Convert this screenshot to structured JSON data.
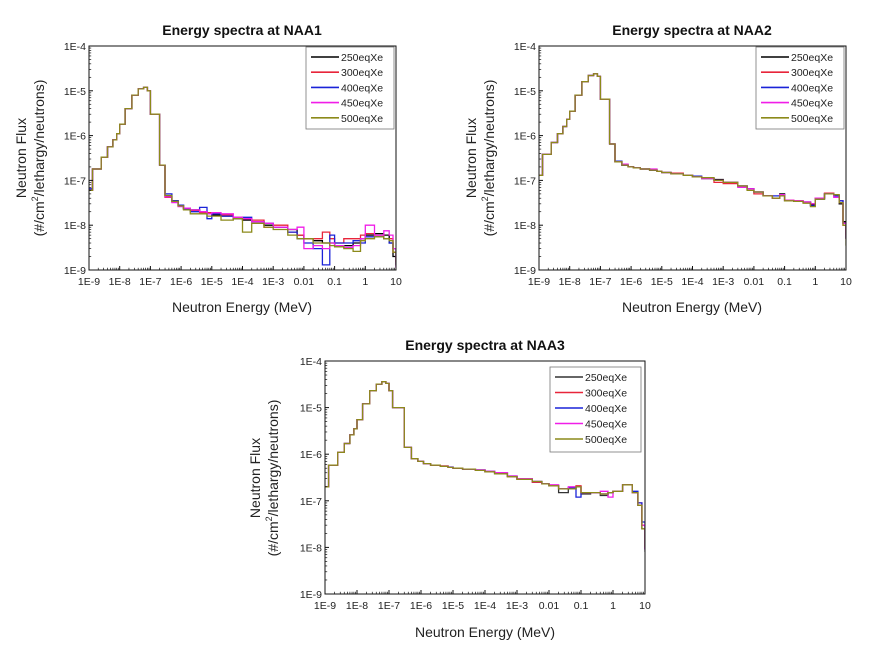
{
  "chart_data": [
    {
      "type": "line",
      "title": "Energy spectra at NAA1",
      "xlabel": "Neutron Energy (MeV)",
      "ylabel_line1": "Neutron Flux",
      "ylabel_line2_pre": "(#/cm",
      "ylabel_line2_sup": "2",
      "ylabel_line2_post": "/lethargy/neutrons)",
      "xscale": "log",
      "yscale": "log",
      "xlim": [
        1e-09,
        10
      ],
      "ylim": [
        1e-09,
        0.0001
      ],
      "xticks": [
        "1E-9",
        "1E-8",
        "1E-7",
        "1E-6",
        "1E-5",
        "1E-4",
        "1E-3",
        "0.01",
        "0.1",
        "1",
        "10"
      ],
      "yticks": [
        "1E-9",
        "1E-8",
        "1E-7",
        "1E-6",
        "1E-5",
        "1E-4"
      ],
      "legend_position": "top-right",
      "step": true,
      "x": [
        1e-09,
        1.3e-09,
        2.5e-09,
        4e-09,
        6e-09,
        8e-09,
        1e-08,
        1.5e-08,
        2.5e-08,
        4e-08,
        6e-08,
        8e-08,
        1e-07,
        2e-07,
        3e-07,
        5e-07,
        8e-07,
        1.2e-06,
        2e-06,
        4e-06,
        7e-06,
        1e-05,
        2e-05,
        5e-05,
        0.0001,
        0.0002,
        0.0005,
        0.001,
        0.003,
        0.006,
        0.01,
        0.02,
        0.04,
        0.07,
        0.1,
        0.2,
        0.4,
        0.7,
        1,
        2,
        4,
        6,
        8,
        10
      ],
      "series": [
        {
          "name": "250eqXe",
          "color": "#000000",
          "values": [
            6e-08,
            1.8e-07,
            3.3e-07,
            5.6e-07,
            8e-07,
            1.1e-06,
            1.8e-06,
            4e-06,
            8e-06,
            1.1e-05,
            1.2e-05,
            1e-05,
            3e-06,
            2.2e-07,
            4.5e-08,
            3.5e-08,
            2.8e-08,
            2.4e-08,
            2.2e-08,
            2e-08,
            1.8e-08,
            1.7e-08,
            1.6e-08,
            1.4e-08,
            1.3e-08,
            1.2e-08,
            1e-08,
            9e-09,
            8e-09,
            6e-09,
            5e-09,
            4.5e-09,
            4e-09,
            4e-09,
            3.5e-09,
            3.5e-09,
            4e-09,
            5e-09,
            6e-09,
            6.5e-09,
            6e-09,
            4e-09,
            2e-09,
            1.2e-09
          ]
        },
        {
          "name": "300eqXe",
          "color": "#e8253a",
          "values": [
            6e-08,
            1.8e-07,
            3.3e-07,
            5.6e-07,
            8e-07,
            1.1e-06,
            1.8e-06,
            4e-06,
            8e-06,
            1.1e-05,
            1.2e-05,
            1e-05,
            3e-06,
            2.2e-07,
            4.2e-08,
            3.3e-08,
            2.7e-08,
            2.3e-08,
            2.1e-08,
            1.9e-08,
            1.9e-08,
            1.8e-08,
            1.7e-08,
            1.5e-08,
            1.4e-08,
            1.3e-08,
            9e-09,
            1e-08,
            7e-09,
            6e-09,
            5e-09,
            5e-09,
            7e-09,
            5e-09,
            4e-09,
            5e-09,
            5e-09,
            6e-09,
            6.5e-09,
            6e-09,
            5e-09,
            5e-09,
            2.5e-09,
            1.5e-09
          ]
        },
        {
          "name": "400eqXe",
          "color": "#1a23d8",
          "values": [
            6.5e-08,
            1.8e-07,
            3.3e-07,
            5.6e-07,
            8e-07,
            1.1e-06,
            1.8e-06,
            4e-06,
            8e-06,
            1.1e-05,
            1.2e-05,
            1e-05,
            3e-06,
            2.2e-07,
            5e-08,
            3.5e-08,
            2.8e-08,
            2.3e-08,
            2e-08,
            2.5e-08,
            1.4e-08,
            1.8e-08,
            1.6e-08,
            1.4e-08,
            1.5e-08,
            1.2e-08,
            1.1e-08,
            9e-09,
            7e-09,
            5e-09,
            4e-09,
            3e-09,
            1.3e-09,
            6e-09,
            4e-09,
            4e-09,
            4.5e-09,
            4e-09,
            5.5e-09,
            5.5e-09,
            5e-09,
            4e-09,
            3e-09,
            1.3e-09
          ]
        },
        {
          "name": "450eqXe",
          "color": "#f01ee8",
          "values": [
            6e-08,
            1.8e-07,
            3.3e-07,
            5.6e-07,
            8e-07,
            1.1e-06,
            1.8e-06,
            4e-06,
            8e-06,
            1.1e-05,
            1.2e-05,
            1e-05,
            3e-06,
            2.2e-07,
            4.3e-08,
            3.2e-08,
            2.6e-08,
            2.4e-08,
            2.2e-08,
            2e-08,
            1.8e-08,
            1.9e-08,
            1.8e-08,
            1.5e-08,
            1.4e-08,
            1.2e-08,
            1.1e-08,
            9e-09,
            8e-09,
            9e-09,
            3e-09,
            3.5e-09,
            3e-09,
            4e-09,
            3.5e-09,
            3.2e-09,
            3.5e-09,
            5e-09,
            1e-08,
            6e-09,
            7.5e-09,
            6e-09,
            3e-09,
            1.1e-09
          ]
        },
        {
          "name": "500eqXe",
          "color": "#8c8a1a",
          "values": [
            6e-08,
            1.8e-07,
            3.3e-07,
            5.6e-07,
            8e-07,
            1.1e-06,
            1.8e-06,
            4e-06,
            8e-06,
            1.1e-05,
            1.2e-05,
            1e-05,
            3e-06,
            2.2e-07,
            4.6e-08,
            3.4e-08,
            2.7e-08,
            2.2e-08,
            1.8e-08,
            1.8e-08,
            1.6e-08,
            1.6e-08,
            1.3e-08,
            1.4e-08,
            7e-09,
            1.1e-08,
            9e-09,
            8e-09,
            6e-09,
            5e-09,
            5e-09,
            4e-09,
            4e-09,
            3.5e-09,
            3.3e-09,
            3e-09,
            2.6e-09,
            4.5e-09,
            5e-09,
            5.5e-09,
            5e-09,
            4.5e-09,
            2.5e-09,
            1.3e-09
          ]
        }
      ]
    },
    {
      "type": "line",
      "title": "Energy spectra at NAA2",
      "xlabel": "Neutron Energy (MeV)",
      "ylabel_line1": "Neutron Flux",
      "ylabel_line2_pre": "(#/cm",
      "ylabel_line2_sup": "2",
      "ylabel_line2_post": "/lethargy/neutrons)",
      "xscale": "log",
      "yscale": "log",
      "xlim": [
        1e-09,
        10
      ],
      "ylim": [
        1e-09,
        0.0001
      ],
      "xticks": [
        "1E-9",
        "1E-8",
        "1E-7",
        "1E-6",
        "1E-5",
        "1E-4",
        "1E-3",
        "0.01",
        "0.1",
        "1",
        "10"
      ],
      "yticks": [
        "1E-9",
        "1E-8",
        "1E-7",
        "1E-6",
        "1E-5",
        "1E-4"
      ],
      "legend_position": "top-right",
      "step": true,
      "x": [
        1e-09,
        1.3e-09,
        2.5e-09,
        4e-09,
        6e-09,
        8e-09,
        1e-08,
        1.5e-08,
        2.5e-08,
        4e-08,
        6e-08,
        8e-08,
        1e-07,
        2e-07,
        3e-07,
        5e-07,
        8e-07,
        1.2e-06,
        2e-06,
        4e-06,
        7e-06,
        1e-05,
        2e-05,
        5e-05,
        0.0001,
        0.0002,
        0.0005,
        0.001,
        0.003,
        0.006,
        0.01,
        0.02,
        0.04,
        0.07,
        0.1,
        0.2,
        0.4,
        0.7,
        1,
        2,
        4,
        6,
        8,
        10
      ],
      "series": [
        {
          "name": "250eqXe",
          "color": "#000000",
          "values": [
            1.3e-07,
            3.8e-07,
            7e-07,
            1.1e-06,
            1.6e-06,
            2.3e-06,
            3.5e-06,
            8e-06,
            1.6e-05,
            2.2e-05,
            2.4e-05,
            2.1e-05,
            6.5e-06,
            6.5e-07,
            2.6e-07,
            2.2e-07,
            2e-07,
            1.9e-07,
            1.8e-07,
            1.7e-07,
            1.6e-07,
            1.5e-07,
            1.4e-07,
            1.3e-07,
            1.2e-07,
            1.1e-07,
            1.05e-07,
            9e-08,
            7.5e-08,
            6.5e-08,
            5.5e-08,
            4.5e-08,
            4e-08,
            5e-08,
            3.5e-08,
            3.4e-08,
            3.2e-08,
            2.8e-08,
            4e-08,
            5e-08,
            4.5e-08,
            3e-08,
            1.2e-08,
            5e-09
          ]
        },
        {
          "name": "300eqXe",
          "color": "#e8253a",
          "values": [
            1.3e-07,
            3.8e-07,
            7e-07,
            1.1e-06,
            1.6e-06,
            2.3e-06,
            3.5e-06,
            8e-06,
            1.6e-05,
            2.2e-05,
            2.4e-05,
            2.1e-05,
            6.5e-06,
            6.5e-07,
            2.6e-07,
            2.2e-07,
            2e-07,
            1.9e-07,
            1.8e-07,
            1.7e-07,
            1.6e-07,
            1.5e-07,
            1.45e-07,
            1.3e-07,
            1.2e-07,
            1.1e-07,
            9e-08,
            8.5e-08,
            7.5e-08,
            6.5e-08,
            5e-08,
            4.5e-08,
            4e-08,
            4.5e-08,
            3.6e-08,
            3.5e-08,
            3.3e-08,
            3e-08,
            4e-08,
            5.2e-08,
            4.5e-08,
            3.5e-08,
            1e-08,
            6e-09
          ]
        },
        {
          "name": "400eqXe",
          "color": "#1a23d8",
          "values": [
            1.3e-07,
            3.8e-07,
            7e-07,
            1.1e-06,
            1.6e-06,
            2.3e-06,
            3.5e-06,
            8e-06,
            1.6e-05,
            2.2e-05,
            2.4e-05,
            2.1e-05,
            6.5e-06,
            6.5e-07,
            2.7e-07,
            2.2e-07,
            2e-07,
            1.9e-07,
            1.8e-07,
            1.7e-07,
            1.6e-07,
            1.5e-07,
            1.4e-07,
            1.3e-07,
            1.25e-07,
            1.1e-07,
            1e-07,
            9e-08,
            7.5e-08,
            6.5e-08,
            5.5e-08,
            4.5e-08,
            4.5e-08,
            4.5e-08,
            3.5e-08,
            3.4e-08,
            3.3e-08,
            2.7e-08,
            3.8e-08,
            5e-08,
            4.5e-08,
            3.5e-08,
            1.1e-08,
            5e-09
          ]
        },
        {
          "name": "450eqXe",
          "color": "#f01ee8",
          "values": [
            1.3e-07,
            3.8e-07,
            7e-07,
            1.1e-06,
            1.6e-06,
            2.3e-06,
            3.5e-06,
            8e-06,
            1.6e-05,
            2.2e-05,
            2.4e-05,
            2.1e-05,
            6.5e-06,
            6.5e-07,
            2.6e-07,
            2.3e-07,
            2e-07,
            1.9e-07,
            1.8e-07,
            1.8e-07,
            1.6e-07,
            1.5e-07,
            1.4e-07,
            1.3e-07,
            1.2e-07,
            1.1e-07,
            1e-07,
            9e-08,
            7e-08,
            6.5e-08,
            5.5e-08,
            4.5e-08,
            4e-08,
            4.8e-08,
            3.6e-08,
            3.5e-08,
            3.3e-08,
            3e-08,
            4e-08,
            5e-08,
            4.2e-08,
            3.2e-08,
            1.1e-08,
            5e-09
          ]
        },
        {
          "name": "500eqXe",
          "color": "#8c8a1a",
          "values": [
            1.3e-07,
            3.8e-07,
            7e-07,
            1.1e-06,
            1.6e-06,
            2.3e-06,
            3.5e-06,
            8e-06,
            1.6e-05,
            2.2e-05,
            2.4e-05,
            2.1e-05,
            6.5e-06,
            6.5e-07,
            2.6e-07,
            2.2e-07,
            2e-07,
            1.9e-07,
            1.8e-07,
            1.7e-07,
            1.6e-07,
            1.5e-07,
            1.4e-07,
            1.3e-07,
            1.2e-07,
            1.15e-07,
            1e-07,
            9e-08,
            7.5e-08,
            6e-08,
            5.5e-08,
            4.5e-08,
            4e-08,
            4.5e-08,
            3.5e-08,
            3.4e-08,
            3.1e-08,
            2.6e-08,
            3.8e-08,
            5e-08,
            4.8e-08,
            3.2e-08,
            1e-08,
            3.5e-09
          ]
        }
      ]
    },
    {
      "type": "line",
      "title": "Energy spectra at NAA3",
      "xlabel": "Neutron Energy (MeV)",
      "ylabel_line1": "Neutron Flux",
      "ylabel_line2_pre": "(#/cm",
      "ylabel_line2_sup": "2",
      "ylabel_line2_post": "/lethargy/neutrons)",
      "xscale": "log",
      "yscale": "log",
      "xlim": [
        1e-09,
        10
      ],
      "ylim": [
        1e-09,
        0.0001
      ],
      "xticks": [
        "1E-9",
        "1E-8",
        "1E-7",
        "1E-6",
        "1E-5",
        "1E-4",
        "1E-3",
        "0.01",
        "0.1",
        "1",
        "10"
      ],
      "yticks": [
        "1E-9",
        "1E-8",
        "1E-7",
        "1E-6",
        "1E-5",
        "1E-4"
      ],
      "legend_position": "top-right",
      "step": true,
      "x": [
        1e-09,
        1.3e-09,
        2.5e-09,
        4e-09,
        6e-09,
        8e-09,
        1e-08,
        1.5e-08,
        2.5e-08,
        4e-08,
        6e-08,
        8e-08,
        1e-07,
        1.3e-07,
        3e-07,
        5e-07,
        8e-07,
        1.2e-06,
        2e-06,
        4e-06,
        7e-06,
        1e-05,
        2e-05,
        5e-05,
        0.0001,
        0.0002,
        0.0005,
        0.001,
        0.003,
        0.006,
        0.01,
        0.02,
        0.04,
        0.07,
        0.1,
        0.2,
        0.4,
        0.7,
        1,
        2,
        4,
        6,
        8,
        10
      ],
      "series": [
        {
          "name": "250eqXe",
          "color": "#333333",
          "values": [
            2e-07,
            5.8e-07,
            1.1e-06,
            1.7e-06,
            2.6e-06,
            3.5e-06,
            5.5e-06,
            1.2e-05,
            2.3e-05,
            3.2e-05,
            3.6e-05,
            3.3e-05,
            2.3e-05,
            1e-05,
            1.4e-06,
            8e-07,
            7e-07,
            6.3e-07,
            5.8e-07,
            5.5e-07,
            5.2e-07,
            5e-07,
            4.8e-07,
            4.5e-07,
            4.2e-07,
            3.8e-07,
            3.3e-07,
            2.9e-07,
            2.6e-07,
            2.3e-07,
            2.1e-07,
            1.5e-07,
            1.8e-07,
            2e-07,
            1.4e-07,
            1.5e-07,
            1.3e-07,
            1.5e-07,
            1.6e-07,
            2.2e-07,
            1.5e-07,
            8e-08,
            2.5e-08,
            8e-09
          ]
        },
        {
          "name": "300eqXe",
          "color": "#e8253a",
          "values": [
            2e-07,
            5.8e-07,
            1.1e-06,
            1.7e-06,
            2.6e-06,
            3.5e-06,
            5.5e-06,
            1.2e-05,
            2.3e-05,
            3.2e-05,
            3.6e-05,
            3.3e-05,
            2.3e-05,
            1e-05,
            1.4e-06,
            8e-07,
            7e-07,
            6.3e-07,
            5.8e-07,
            5.6e-07,
            5.2e-07,
            5e-07,
            4.8e-07,
            4.5e-07,
            4.2e-07,
            3.9e-07,
            3.3e-07,
            2.9e-07,
            2.5e-07,
            2.3e-07,
            2.1e-07,
            1.8e-07,
            1.9e-07,
            2.1e-07,
            1.5e-07,
            1.5e-07,
            1.4e-07,
            1.5e-07,
            1.6e-07,
            2.2e-07,
            1.5e-07,
            9e-08,
            3e-08,
            9e-09
          ]
        },
        {
          "name": "400eqXe",
          "color": "#1a23d8",
          "values": [
            2e-07,
            5.8e-07,
            1.1e-06,
            1.7e-06,
            2.6e-06,
            3.5e-06,
            5.5e-06,
            1.2e-05,
            2.3e-05,
            3.2e-05,
            3.6e-05,
            3.3e-05,
            2.3e-05,
            1e-05,
            1.4e-06,
            8e-07,
            7e-07,
            6.3e-07,
            5.8e-07,
            5.5e-07,
            5.3e-07,
            5e-07,
            4.8e-07,
            4.6e-07,
            4.3e-07,
            4e-07,
            3.4e-07,
            3e-07,
            2.6e-07,
            2.3e-07,
            2.1e-07,
            1.8e-07,
            1.9e-07,
            1.2e-07,
            1.5e-07,
            1.5e-07,
            1.4e-07,
            1.5e-07,
            1.6e-07,
            2.2e-07,
            1.6e-07,
            9e-08,
            3.5e-08,
            9e-09
          ]
        },
        {
          "name": "450eqXe",
          "color": "#f01ee8",
          "values": [
            2e-07,
            5.8e-07,
            1.1e-06,
            1.7e-06,
            2.6e-06,
            3.5e-06,
            5.5e-06,
            1.2e-05,
            2.3e-05,
            3.2e-05,
            3.6e-05,
            3.3e-05,
            2.3e-05,
            1e-05,
            1.4e-06,
            8e-07,
            7e-07,
            6.3e-07,
            5.8e-07,
            5.5e-07,
            5.2e-07,
            5e-07,
            4.8e-07,
            4.6e-07,
            4.3e-07,
            4e-07,
            3.4e-07,
            3e-07,
            2.6e-07,
            2.3e-07,
            2.2e-07,
            1.8e-07,
            2e-07,
            2e-07,
            1.5e-07,
            1.5e-07,
            1.6e-07,
            1.2e-07,
            1.6e-07,
            2.2e-07,
            1.5e-07,
            8e-08,
            3e-08,
            9e-09
          ]
        },
        {
          "name": "500eqXe",
          "color": "#8c8a1a",
          "values": [
            2e-07,
            5.8e-07,
            1.1e-06,
            1.7e-06,
            2.6e-06,
            3.5e-06,
            5.5e-06,
            1.2e-05,
            2.3e-05,
            3.2e-05,
            3.6e-05,
            3.3e-05,
            2.3e-05,
            1e-05,
            1.4e-06,
            8e-07,
            7e-07,
            6.3e-07,
            5.8e-07,
            5.5e-07,
            5.2e-07,
            5e-07,
            4.8e-07,
            4.5e-07,
            4.2e-07,
            3.8e-07,
            3.3e-07,
            2.9e-07,
            2.6e-07,
            2.3e-07,
            2.1e-07,
            1.8e-07,
            1.8e-07,
            2e-07,
            1.5e-07,
            1.5e-07,
            1.4e-07,
            1.5e-07,
            1.6e-07,
            2.2e-07,
            1.5e-07,
            8e-08,
            2.5e-08,
            1e-08
          ]
        }
      ]
    }
  ]
}
